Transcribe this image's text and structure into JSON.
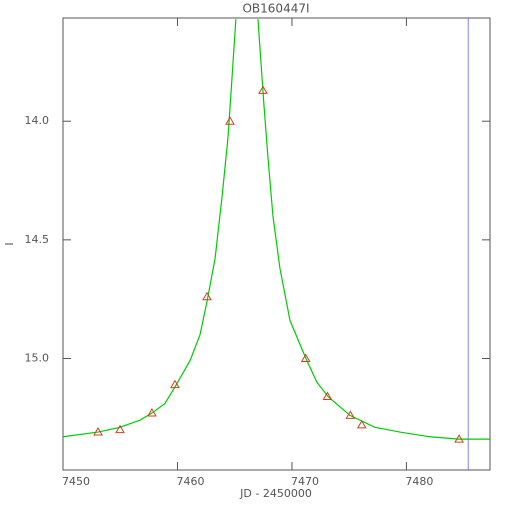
{
  "chart_data": {
    "type": "scatter",
    "title": "OB160447I",
    "x_label": "JD - 2450000",
    "y_label": "I",
    "xlim": [
      7450,
      7487.3
    ],
    "xticks": [
      7450,
      7460,
      7470,
      7480
    ],
    "ylim": [
      15.47,
      13.565
    ],
    "yticks": [
      {
        "value": 14.0,
        "label": "14.0"
      },
      {
        "value": 14.5,
        "label": "14.5"
      },
      {
        "value": 15.0,
        "label": "15.0"
      }
    ],
    "axis_color": "#555555",
    "series": [
      {
        "kind": "points",
        "color": "#d04020",
        "x": [
          7453.06,
          7454.98,
          7457.77,
          7459.78,
          7462.58,
          7464.59,
          7467.47,
          7471.2,
          7473.1,
          7475.1,
          7476.1,
          7484.6
        ],
        "values": [
          15.31,
          15.3,
          15.23,
          15.11,
          14.74,
          14.0,
          13.87,
          15.0,
          15.16,
          15.24,
          15.28,
          15.34
        ]
      },
      {
        "kind": "line",
        "color": "#00cc00",
        "x": [
          7450.0,
          7453.06,
          7454.98,
          7456.72,
          7457.77,
          7458.9,
          7459.78,
          7461.09,
          7461.97,
          7462.58,
          7463.28,
          7463.89,
          7464.41,
          7464.76,
          7465.1,
          7466.0,
          7467.03,
          7467.29,
          7467.55,
          7467.9,
          7468.34,
          7468.95,
          7469.83,
          7471.22,
          7472.18,
          7473.14,
          7475.07,
          7477.25,
          7479.43,
          7482.05,
          7484.59,
          7487.3
        ],
        "values": [
          15.33,
          15.31,
          15.29,
          15.26,
          15.23,
          15.19,
          15.12,
          15.01,
          14.9,
          14.76,
          14.58,
          14.32,
          14.07,
          13.82,
          13.57,
          null,
          13.57,
          13.75,
          13.93,
          14.15,
          14.4,
          14.62,
          14.84,
          15.0,
          15.1,
          15.16,
          15.24,
          15.29,
          15.31,
          15.33,
          15.34,
          15.34
        ]
      }
    ],
    "vertical_line": {
      "x": 7485.4,
      "color": "#8080ff"
    }
  }
}
